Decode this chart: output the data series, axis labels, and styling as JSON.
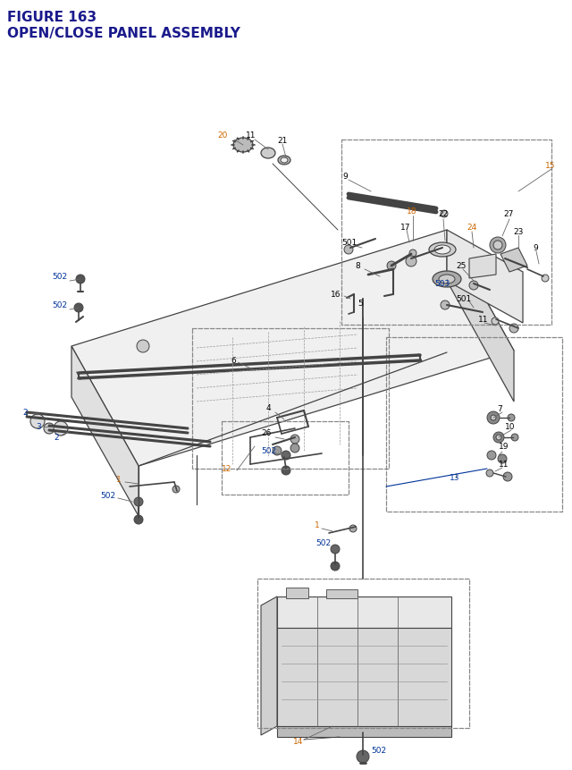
{
  "title_line1": "FIGURE 163",
  "title_line2": "OPEN/CLOSE PANEL ASSEMBLY",
  "title_color": "#1a1a8c",
  "title_fontsize": 11,
  "bg_color": "#ffffff",
  "label_color_black": "#000000",
  "label_color_blue": "#003399",
  "label_color_orange": "#cc6600",
  "label_fs": 6.5
}
